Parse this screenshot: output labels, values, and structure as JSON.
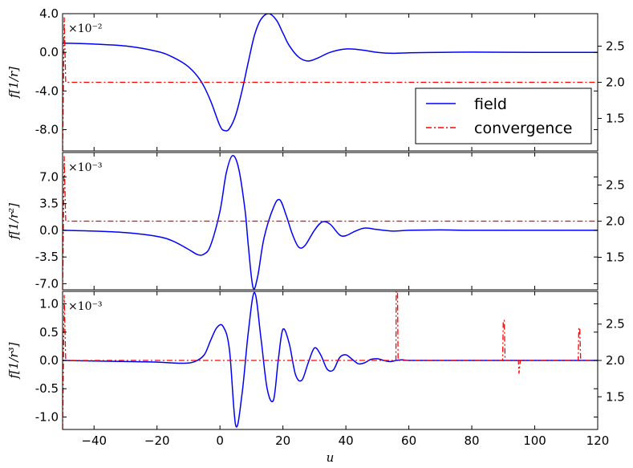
{
  "chart_data": [
    {
      "type": "line",
      "ylabel": "f[1/r]",
      "scale_label": "×10⁻²",
      "xlim": [
        -50,
        120
      ],
      "ylim": [
        -10.2,
        4.0
      ],
      "yticks": [
        -8.0,
        -4.0,
        0.0,
        4.0
      ],
      "ytick_labels": [
        "-8.0",
        "-4.0",
        "0.0",
        "4.0"
      ],
      "y2lim": [
        1.05,
        2.95
      ],
      "y2ticks": [
        1.5,
        2.0,
        2.5
      ],
      "y2tick_labels": [
        "1.5",
        "2.0",
        "2.5"
      ],
      "series": [
        {
          "name": "field",
          "color": "#0000ff",
          "style": "solid",
          "axis": "left",
          "x": [
            -50,
            -40,
            -30,
            -20,
            -15,
            -10,
            -6,
            -3,
            0,
            1.5,
            3,
            5,
            7,
            9,
            11,
            13,
            15.5,
            18,
            20,
            22,
            25,
            28,
            31,
            35,
            40,
            45,
            50,
            55,
            60,
            70,
            80,
            100,
            120
          ],
          "y": [
            0.95,
            0.85,
            0.65,
            0.1,
            -0.5,
            -1.5,
            -3.0,
            -5.0,
            -7.6,
            -8.1,
            -7.9,
            -6.5,
            -4.0,
            -1.0,
            1.8,
            3.4,
            4.0,
            3.3,
            2.0,
            0.7,
            -0.5,
            -0.9,
            -0.6,
            0.0,
            0.35,
            0.25,
            0.0,
            -0.1,
            -0.05,
            0.0,
            0.02,
            0.0,
            0.0
          ]
        },
        {
          "name": "convergence",
          "color": "#ff0000",
          "style": "dash-dot",
          "axis": "right",
          "x": [
            -50,
            -49.5,
            -49,
            -48,
            0,
            20,
            40,
            60,
            80,
            100,
            120
          ],
          "y": [
            1.05,
            2.9,
            2.0,
            2.0,
            2.0,
            2.0,
            2.0,
            2.0,
            2.0,
            2.0,
            2.0
          ]
        }
      ]
    },
    {
      "type": "line",
      "ylabel": "f[1/r²]",
      "scale_label": "×10⁻³",
      "xlim": [
        -50,
        120
      ],
      "ylim": [
        -7.8,
        10.2
      ],
      "yticks": [
        -7.0,
        -3.5,
        0.0,
        3.5,
        7.0
      ],
      "ytick_labels": [
        "-7.0",
        "-3.5",
        "0.0",
        "3.5",
        "7.0"
      ],
      "y2lim": [
        1.05,
        2.95
      ],
      "y2ticks": [
        1.5,
        2.0,
        2.5
      ],
      "y2tick_labels": [
        "1.5",
        "2.0",
        "2.5"
      ],
      "series": [
        {
          "name": "field",
          "color": "#0000ff",
          "style": "solid",
          "axis": "left",
          "x": [
            -50,
            -40,
            -30,
            -20,
            -15,
            -10,
            -7,
            -5,
            -3,
            0,
            2,
            4,
            6,
            8,
            9,
            10.5,
            12,
            14,
            17,
            19,
            21,
            23,
            25,
            27,
            30,
            32.5,
            35,
            38,
            40,
            43,
            46,
            50,
            55,
            60,
            70,
            80,
            100,
            120
          ],
          "y": [
            0.0,
            -0.1,
            -0.3,
            -0.8,
            -1.4,
            -2.5,
            -3.2,
            -3.1,
            -2.0,
            2.5,
            7.5,
            9.8,
            8.0,
            2.5,
            -2.0,
            -7.5,
            -6.0,
            -1.0,
            3.0,
            4.0,
            2.0,
            -0.5,
            -2.2,
            -2.0,
            0.0,
            1.1,
            0.8,
            -0.6,
            -0.7,
            -0.1,
            0.3,
            0.1,
            -0.1,
            0.0,
            0.05,
            0.0,
            0.0,
            0.0
          ]
        },
        {
          "name": "convergence",
          "color": "#ff0000",
          "style": "dash-dot",
          "axis": "right",
          "x": [
            -50,
            -49.5,
            -49,
            -48,
            0,
            20,
            40,
            60,
            80,
            100,
            120
          ],
          "y": [
            1.05,
            2.9,
            2.0,
            2.0,
            2.0,
            2.0,
            2.0,
            2.0,
            2.0,
            2.0,
            2.0
          ]
        }
      ]
    },
    {
      "type": "line",
      "ylabel": "f[1/r³]",
      "xlabel": "u",
      "scale_label": "×10⁻³",
      "xlim": [
        -50,
        120
      ],
      "ylim": [
        -1.22,
        1.22
      ],
      "yticks": [
        -1.0,
        -0.5,
        0.0,
        0.5,
        1.0
      ],
      "ytick_labels": [
        "-1.0",
        "-0.5",
        "0.0",
        "0.5",
        "1.0"
      ],
      "xticks": [
        -40,
        -20,
        0,
        20,
        40,
        60,
        80,
        100,
        120
      ],
      "xtick_labels": [
        "−40",
        "−20",
        "0",
        "20",
        "40",
        "60",
        "80",
        "100",
        "120"
      ],
      "y2lim": [
        1.05,
        2.95
      ],
      "y2ticks": [
        1.5,
        2.0,
        2.5
      ],
      "y2tick_labels": [
        "1.5",
        "2.0",
        "2.5"
      ],
      "series": [
        {
          "name": "field",
          "color": "#0000ff",
          "style": "solid",
          "axis": "left",
          "x": [
            -50,
            -30,
            -20,
            -12,
            -8,
            -5,
            -3,
            -1,
            1,
            3,
            5,
            7,
            9,
            11,
            13,
            15,
            17,
            18.5,
            20,
            22,
            24,
            26,
            28,
            30,
            32,
            34,
            36,
            38,
            40,
            42,
            44,
            46,
            48,
            50,
            52,
            54,
            56,
            58,
            60,
            65,
            70,
            80,
            100,
            120
          ],
          "y": [
            0.0,
            -0.02,
            -0.03,
            -0.05,
            -0.02,
            0.1,
            0.35,
            0.58,
            0.6,
            0.2,
            -1.15,
            -0.6,
            0.5,
            1.2,
            0.4,
            -0.5,
            -0.7,
            0.0,
            0.55,
            0.3,
            -0.25,
            -0.35,
            -0.05,
            0.22,
            0.1,
            -0.15,
            -0.17,
            0.05,
            0.1,
            0.02,
            -0.06,
            -0.04,
            0.02,
            0.03,
            0.0,
            -0.02,
            0.0,
            0.01,
            0.0,
            0.0,
            0.0,
            0.0,
            0.0,
            0.0
          ]
        },
        {
          "name": "convergence",
          "color": "#ff0000",
          "style": "dash-dot",
          "axis": "right",
          "x": [
            -50,
            -49.5,
            -49,
            -48,
            0,
            20,
            40,
            55.9,
            56,
            56.4,
            56.6,
            60,
            89.8,
            90,
            90.3,
            90.6,
            94.8,
            95,
            95.4,
            113.8,
            114,
            114.3,
            114.6,
            120
          ],
          "y": [
            1.05,
            2.9,
            2.0,
            2.0,
            2.0,
            2.0,
            2.0,
            2.0,
            2.95,
            2.95,
            2.0,
            2.0,
            2.0,
            2.55,
            2.55,
            2.0,
            2.0,
            1.82,
            2.0,
            2.0,
            2.45,
            2.45,
            2.0,
            2.0
          ]
        }
      ]
    }
  ],
  "legend": {
    "position": "right, first panel",
    "entries": [
      {
        "label": "field",
        "color": "#0000ff",
        "style": "solid"
      },
      {
        "label": "convergence",
        "color": "#ff0000",
        "style": "dash-dot"
      }
    ]
  }
}
